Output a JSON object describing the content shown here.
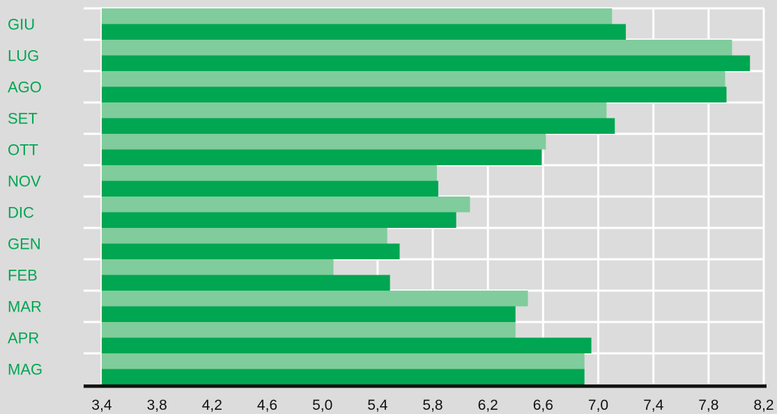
{
  "chart_data": {
    "type": "bar",
    "orientation": "horizontal",
    "categories": [
      "GIU",
      "LUG",
      "AGO",
      "SET",
      "OTT",
      "NOV",
      "DIC",
      "GEN",
      "FEB",
      "MAR",
      "APR",
      "MAG"
    ],
    "series": [
      {
        "values": [
          7.1,
          7.97,
          7.92,
          7.06,
          6.62,
          5.83,
          6.07,
          5.47,
          5.08,
          6.49,
          6.4,
          6.9
        ],
        "color": "#80cc9c"
      },
      {
        "values": [
          7.2,
          8.1,
          7.93,
          7.12,
          6.59,
          5.84,
          5.97,
          5.56,
          5.49,
          6.4,
          6.95,
          6.9
        ],
        "color": "#00a651"
      }
    ],
    "x_ticks": [
      "3,4",
      "3,8",
      "4,2",
      "4,6",
      "5,0",
      "5,4",
      "5,8",
      "6,2",
      "6,6",
      "7,0",
      "7,4",
      "7,8",
      "8,2"
    ],
    "xlim": [
      3.4,
      8.2
    ],
    "grid": true,
    "colors": {
      "background": "#dcdcdc",
      "grid": "#ffffff",
      "axis": "#111111",
      "label": "#00a651"
    }
  }
}
